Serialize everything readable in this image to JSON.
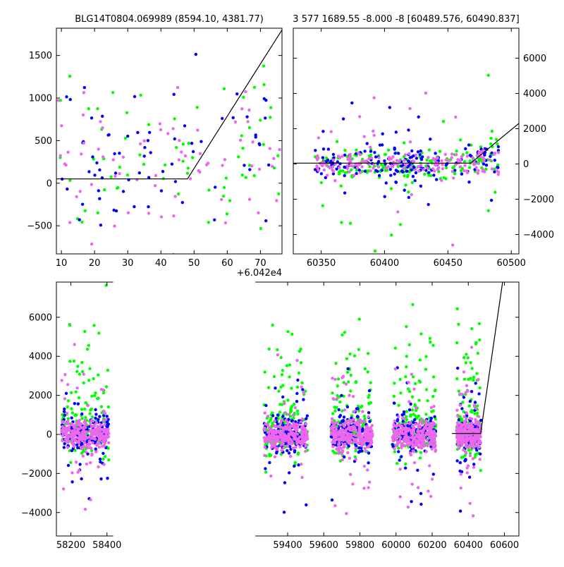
{
  "colors": {
    "green": "#00ff00",
    "blue": "#0000ff",
    "pink": "#ee66ee",
    "model": "#000000"
  },
  "chart_data": [
    {
      "id": "zoom_left",
      "type": "scatter",
      "title": "BLG14T0804.069989 (8594.10, 4381.77)",
      "x_offset_label": "+6.042e4",
      "xlim": [
        8.5,
        76.5
      ],
      "ylim": [
        -830,
        1820
      ],
      "xticks": [
        10,
        20,
        30,
        40,
        50,
        60,
        70
      ],
      "yticks": [
        -500,
        0,
        500,
        1000,
        1500
      ],
      "yaxis_side": "left",
      "model_line": [
        [
          8.5,
          50
        ],
        [
          48,
          50
        ],
        [
          76.5,
          1800
        ]
      ],
      "scatter_spec": {
        "x_range": [
          9,
          76
        ],
        "y_mean": 220,
        "y_sd": 450,
        "trend": 6,
        "n_per_series": 70,
        "seed": 7
      }
    },
    {
      "id": "zoom_right",
      "type": "scatter",
      "title": "3 577 1689.55 -8.000 -8 [60489.576, 60490.837]",
      "xlim": [
        60328,
        60506
      ],
      "ylim": [
        -5100,
        7700
      ],
      "xticks": [
        60350,
        60400,
        60450,
        60500
      ],
      "yticks": [
        -4000,
        -2000,
        0,
        2000,
        4000,
        6000
      ],
      "yaxis_side": "right",
      "model_line": [
        [
          60328,
          50
        ],
        [
          60468,
          50
        ],
        [
          60506,
          2300
        ]
      ],
      "scatter_spec": {
        "x_range": [
          60345,
          60490
        ],
        "y_mean": 0,
        "y_sd": 450,
        "outlier_sd": 2200,
        "n_per_series": 180,
        "seed": 11
      }
    },
    {
      "id": "full",
      "type": "scatter",
      "xlim": [
        58120,
        60680
      ],
      "ylim": [
        -5200,
        7800
      ],
      "xticks": [
        58200,
        58400,
        59400,
        59600,
        59800,
        60000,
        60200,
        60400,
        60600
      ],
      "yticks": [
        -4000,
        -2000,
        0,
        2000,
        4000,
        6000
      ],
      "yaxis_side": "left",
      "segments": [
        [
          58120,
          58430
        ],
        [
          59225,
          60680
        ]
      ],
      "seasons": [
        [
          58150,
          58410
        ],
        [
          59270,
          59510
        ],
        [
          59640,
          59870
        ],
        [
          59980,
          60220
        ],
        [
          60335,
          60470
        ]
      ],
      "model_line": [
        [
          60310,
          50
        ],
        [
          60468,
          50
        ],
        [
          60590,
          7800
        ]
      ],
      "scatter_spec": {
        "y_mean": 0,
        "y_sd": 380,
        "outlier_sd": 2200,
        "n_per_season": 260,
        "seed": 3
      }
    }
  ]
}
